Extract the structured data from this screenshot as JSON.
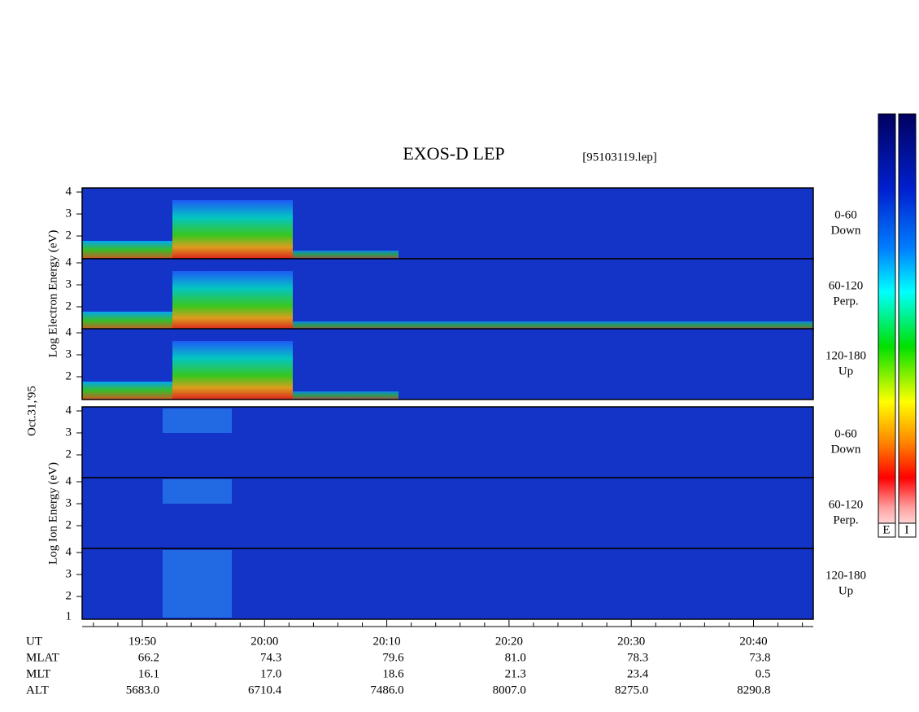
{
  "title": "EXOS-D LEP",
  "file": "[95103119.lep]",
  "left_labels": {
    "electron": "Log Electron Energy (eV)",
    "date": "Oct.31,'95",
    "ion": "Log Ion Energy (eV)"
  },
  "panels": [
    {
      "angle": "0-60",
      "direction": "Down"
    },
    {
      "angle": "60-120",
      "direction": "Perp."
    },
    {
      "angle": "120-180",
      "direction": "Up"
    },
    {
      "angle": "0-60",
      "direction": "Down"
    },
    {
      "angle": "60-120",
      "direction": "Perp."
    },
    {
      "angle": "120-180",
      "direction": "Up"
    }
  ],
  "y_tick_labels": [
    "4",
    "3",
    "2"
  ],
  "bottom_tick_label": "1",
  "x_tick_labels": [
    "19:50",
    "20:00",
    "20:10",
    "20:20",
    "20:30",
    "20:40"
  ],
  "ephemeris": {
    "labels": [
      "UT",
      "MLAT",
      "MLT",
      "ALT"
    ],
    "rows": [
      [
        "66.2",
        "74.3",
        "79.6",
        "81.0",
        "78.3",
        "73.8"
      ],
      [
        "16.1",
        "17.0",
        "18.6",
        "21.3",
        "23.4",
        "0.5"
      ],
      [
        "5683.0",
        "6710.4",
        "7486.0",
        "8007.0",
        "8275.0",
        "8290.8"
      ]
    ]
  },
  "colorbar_labels": [
    "E",
    "I"
  ]
}
